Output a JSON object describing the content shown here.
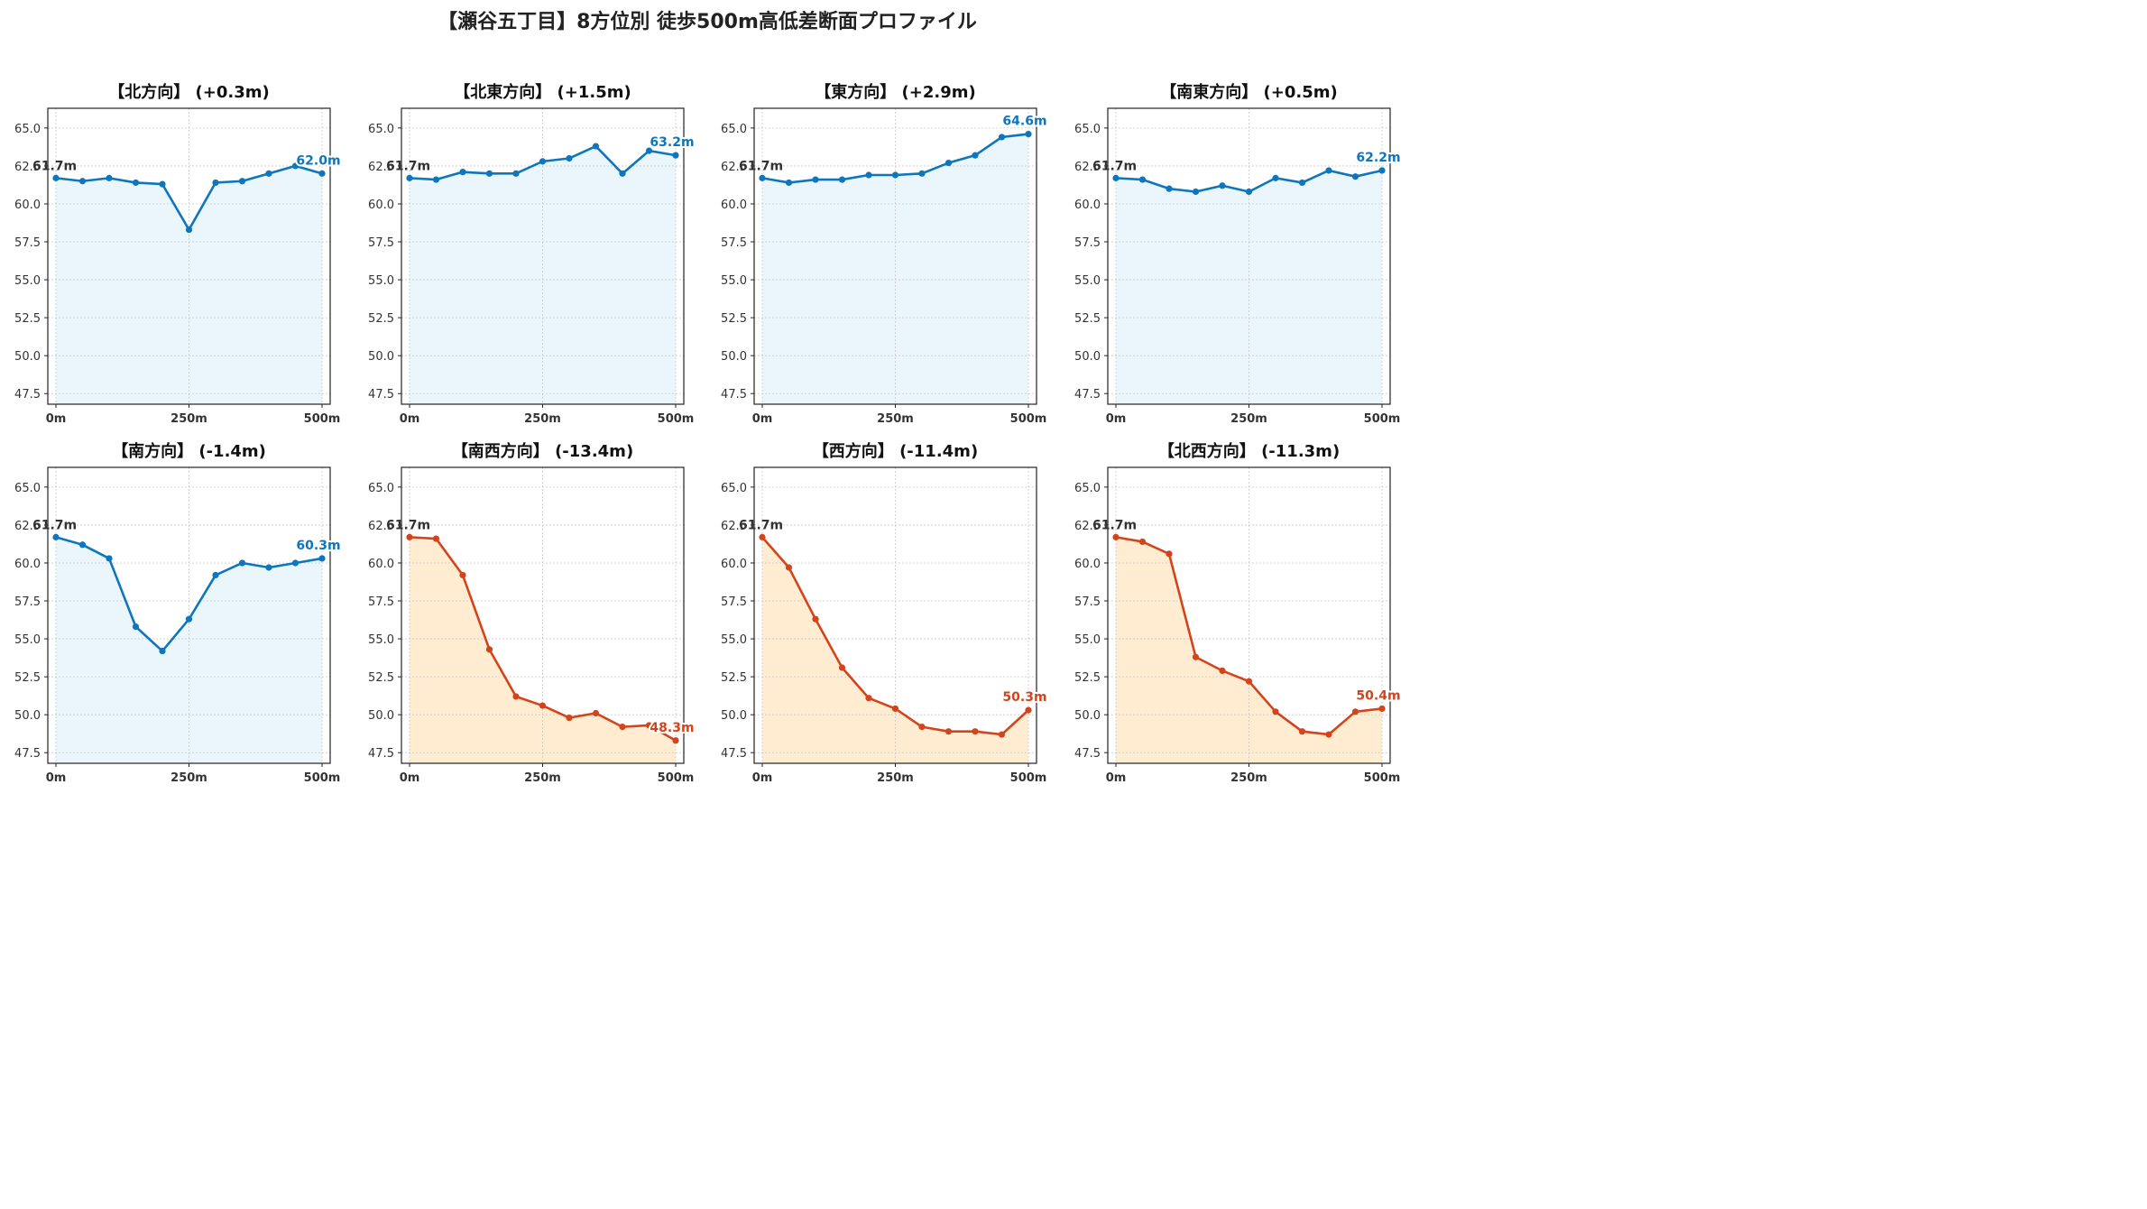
{
  "title": "【瀬谷五丁目】8方位別 徒歩500m高低差断面プロファイル",
  "colors": {
    "up_line": "#0E76BC",
    "up_fill": "#EAF6FB",
    "down_line": "#D4441C",
    "down_fill": "#FFECD1",
    "start_label": "#333333"
  },
  "chart_data": [
    {
      "type": "line",
      "title": "【北方向】 (+0.3m)",
      "trend": "up",
      "x": [
        0,
        50,
        100,
        150,
        200,
        250,
        300,
        350,
        400,
        450,
        500
      ],
      "values": [
        61.7,
        61.5,
        61.7,
        61.4,
        61.3,
        58.3,
        61.4,
        61.5,
        62.0,
        62.5,
        62.0
      ],
      "start_label": "61.7m",
      "end_label": "62.0m",
      "xticks": [
        "0m",
        "250m",
        "500m"
      ],
      "yticks": [
        "47.5",
        "50.0",
        "52.5",
        "55.0",
        "57.5",
        "60.0",
        "62.5",
        "65.0"
      ],
      "ylim": [
        46.8,
        66.3
      ],
      "grid": true
    },
    {
      "type": "line",
      "title": "【北東方向】 (+1.5m)",
      "trend": "up",
      "x": [
        0,
        50,
        100,
        150,
        200,
        250,
        300,
        350,
        400,
        450,
        500
      ],
      "values": [
        61.7,
        61.6,
        62.1,
        62.0,
        62.0,
        62.8,
        63.0,
        63.8,
        62.0,
        63.5,
        63.2
      ],
      "start_label": "61.7m",
      "end_label": "63.2m",
      "xticks": [
        "0m",
        "250m",
        "500m"
      ],
      "yticks": [
        "47.5",
        "50.0",
        "52.5",
        "55.0",
        "57.5",
        "60.0",
        "62.5",
        "65.0"
      ],
      "ylim": [
        46.8,
        66.3
      ],
      "grid": true
    },
    {
      "type": "line",
      "title": "【東方向】 (+2.9m)",
      "trend": "up",
      "x": [
        0,
        50,
        100,
        150,
        200,
        250,
        300,
        350,
        400,
        450,
        500
      ],
      "values": [
        61.7,
        61.4,
        61.6,
        61.6,
        61.9,
        61.9,
        62.0,
        62.7,
        63.2,
        64.4,
        64.6
      ],
      "start_label": "61.7m",
      "end_label": "64.6m",
      "xticks": [
        "0m",
        "250m",
        "500m"
      ],
      "yticks": [
        "47.5",
        "50.0",
        "52.5",
        "55.0",
        "57.5",
        "60.0",
        "62.5",
        "65.0"
      ],
      "ylim": [
        46.8,
        66.3
      ],
      "grid": true
    },
    {
      "type": "line",
      "title": "【南東方向】 (+0.5m)",
      "trend": "up",
      "x": [
        0,
        50,
        100,
        150,
        200,
        250,
        300,
        350,
        400,
        450,
        500
      ],
      "values": [
        61.7,
        61.6,
        61.0,
        60.8,
        61.2,
        60.8,
        61.7,
        61.4,
        62.2,
        61.8,
        62.2
      ],
      "start_label": "61.7m",
      "end_label": "62.2m",
      "xticks": [
        "0m",
        "250m",
        "500m"
      ],
      "yticks": [
        "47.5",
        "50.0",
        "52.5",
        "55.0",
        "57.5",
        "60.0",
        "62.5",
        "65.0"
      ],
      "ylim": [
        46.8,
        66.3
      ],
      "grid": true
    },
    {
      "type": "line",
      "title": "【南方向】 (-1.4m)",
      "trend": "up",
      "x": [
        0,
        50,
        100,
        150,
        200,
        250,
        300,
        350,
        400,
        450,
        500
      ],
      "values": [
        61.7,
        61.2,
        60.3,
        55.8,
        54.2,
        56.3,
        59.2,
        60.0,
        59.7,
        60.0,
        60.3
      ],
      "start_label": "61.7m",
      "end_label": "60.3m",
      "xticks": [
        "0m",
        "250m",
        "500m"
      ],
      "yticks": [
        "47.5",
        "50.0",
        "52.5",
        "55.0",
        "57.5",
        "60.0",
        "62.5",
        "65.0"
      ],
      "ylim": [
        46.8,
        66.3
      ],
      "grid": true
    },
    {
      "type": "line",
      "title": "【南西方向】 (-13.4m)",
      "trend": "down",
      "x": [
        0,
        50,
        100,
        150,
        200,
        250,
        300,
        350,
        400,
        450,
        500
      ],
      "values": [
        61.7,
        61.6,
        59.2,
        54.3,
        51.2,
        50.6,
        49.8,
        50.1,
        49.2,
        49.3,
        48.3
      ],
      "start_label": "61.7m",
      "end_label": "48.3m",
      "xticks": [
        "0m",
        "250m",
        "500m"
      ],
      "yticks": [
        "47.5",
        "50.0",
        "52.5",
        "55.0",
        "57.5",
        "60.0",
        "62.5",
        "65.0"
      ],
      "ylim": [
        46.8,
        66.3
      ],
      "grid": true
    },
    {
      "type": "line",
      "title": "【西方向】 (-11.4m)",
      "trend": "down",
      "x": [
        0,
        50,
        100,
        150,
        200,
        250,
        300,
        350,
        400,
        450,
        500
      ],
      "values": [
        61.7,
        59.7,
        56.3,
        53.1,
        51.1,
        50.4,
        49.2,
        48.9,
        48.9,
        48.7,
        50.3
      ],
      "start_label": "61.7m",
      "end_label": "50.3m",
      "xticks": [
        "0m",
        "250m",
        "500m"
      ],
      "yticks": [
        "47.5",
        "50.0",
        "52.5",
        "55.0",
        "57.5",
        "60.0",
        "62.5",
        "65.0"
      ],
      "ylim": [
        46.8,
        66.3
      ],
      "grid": true
    },
    {
      "type": "line",
      "title": "【北西方向】 (-11.3m)",
      "trend": "down",
      "x": [
        0,
        50,
        100,
        150,
        200,
        250,
        300,
        350,
        400,
        450,
        500
      ],
      "values": [
        61.7,
        61.4,
        60.6,
        53.8,
        52.9,
        52.2,
        50.2,
        48.9,
        48.7,
        50.2,
        50.4
      ],
      "start_label": "61.7m",
      "end_label": "50.4m",
      "xticks": [
        "0m",
        "250m",
        "500m"
      ],
      "yticks": [
        "47.5",
        "50.0",
        "52.5",
        "55.0",
        "57.5",
        "60.0",
        "62.5",
        "65.0"
      ],
      "ylim": [
        46.8,
        66.3
      ],
      "grid": true
    }
  ]
}
